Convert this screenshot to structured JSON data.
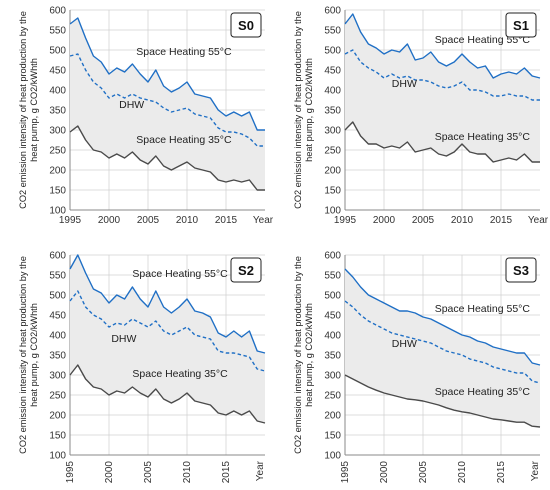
{
  "colors": {
    "space_55": "#1f6fc5",
    "dhw": "#1f6fc5",
    "space_35": "#4a4a4a",
    "band": "#ebebeb",
    "grid": "#d0d0d0"
  },
  "chart_data": [
    {
      "type": "line",
      "panel_label": "S0",
      "ylabel": "CO2 emission intensity of heat production by the heat pump, g CO2/kWhth",
      "ylim": [
        100,
        600
      ],
      "yticks": [
        100,
        150,
        200,
        250,
        300,
        350,
        400,
        450,
        500,
        550,
        600
      ],
      "xlim": [
        1995,
        2020
      ],
      "xticks": [
        1995,
        2000,
        2005,
        2010,
        2015
      ],
      "x_end_label": "Year",
      "annotations": [
        "Space Heating 55°C",
        "DHW",
        "Space Heating 35°C"
      ],
      "x": [
        1995,
        1996,
        1997,
        1998,
        1999,
        2000,
        2001,
        2002,
        2003,
        2004,
        2005,
        2006,
        2007,
        2008,
        2009,
        2010,
        2011,
        2012,
        2013,
        2014,
        2015,
        2016,
        2017,
        2018,
        2019,
        2020
      ],
      "series": [
        {
          "name": "Space Heating 55°C",
          "style": "solid",
          "values": [
            565,
            580,
            530,
            485,
            470,
            440,
            455,
            445,
            465,
            440,
            420,
            450,
            410,
            395,
            405,
            420,
            390,
            385,
            380,
            350,
            335,
            345,
            335,
            345,
            300,
            300
          ]
        },
        {
          "name": "DHW",
          "style": "dashed",
          "values": [
            485,
            490,
            450,
            420,
            405,
            380,
            390,
            380,
            390,
            380,
            375,
            370,
            355,
            345,
            350,
            355,
            340,
            335,
            330,
            305,
            295,
            295,
            290,
            280,
            260,
            260
          ]
        },
        {
          "name": "Space Heating 35°C",
          "style": "solid",
          "values": [
            295,
            310,
            275,
            250,
            245,
            230,
            240,
            230,
            245,
            225,
            215,
            235,
            210,
            200,
            210,
            220,
            205,
            200,
            195,
            175,
            170,
            175,
            170,
            175,
            150,
            150
          ]
        }
      ]
    },
    {
      "type": "line",
      "panel_label": "S1",
      "ylabel": "CO2 emission intensity of heat production by the heat pump, g CO2/kWhth",
      "ylim": [
        100,
        600
      ],
      "yticks": [
        100,
        150,
        200,
        250,
        300,
        350,
        400,
        450,
        500,
        550,
        600
      ],
      "xlim": [
        1995,
        2020
      ],
      "xticks": [
        1995,
        2000,
        2005,
        2010,
        2015
      ],
      "x_end_label": "Year",
      "annotations": [
        "Space Heating 55°C",
        "DHW",
        "Space Heating 35°C"
      ],
      "x": [
        1995,
        1996,
        1997,
        1998,
        1999,
        2000,
        2001,
        2002,
        2003,
        2004,
        2005,
        2006,
        2007,
        2008,
        2009,
        2010,
        2011,
        2012,
        2013,
        2014,
        2015,
        2016,
        2017,
        2018,
        2019,
        2020
      ],
      "series": [
        {
          "name": "Space Heating 55°C",
          "style": "solid",
          "values": [
            565,
            590,
            545,
            515,
            505,
            490,
            500,
            495,
            515,
            475,
            480,
            495,
            470,
            460,
            470,
            490,
            470,
            455,
            460,
            430,
            440,
            445,
            440,
            455,
            435,
            430
          ]
        },
        {
          "name": "DHW",
          "style": "dashed",
          "values": [
            490,
            500,
            470,
            455,
            445,
            430,
            440,
            430,
            435,
            425,
            425,
            420,
            410,
            405,
            410,
            420,
            400,
            400,
            395,
            385,
            385,
            390,
            385,
            385,
            375,
            375
          ]
        },
        {
          "name": "Space Heating 35°C",
          "style": "solid",
          "values": [
            300,
            320,
            285,
            265,
            265,
            255,
            260,
            255,
            270,
            245,
            250,
            255,
            240,
            235,
            245,
            265,
            245,
            240,
            240,
            220,
            225,
            230,
            225,
            240,
            220,
            220
          ]
        }
      ]
    },
    {
      "type": "line",
      "panel_label": "S2",
      "ylabel": "CO2 emission intensity of heat production by the heat pump, g CO2/kWhth",
      "ylim": [
        100,
        600
      ],
      "yticks": [
        100,
        150,
        200,
        250,
        300,
        350,
        400,
        450,
        500,
        550,
        600
      ],
      "xlim": [
        1995,
        2020
      ],
      "xticks": [
        1995,
        2000,
        2005,
        2010,
        2015
      ],
      "x_end_label": "Year",
      "annotations": [
        "Space Heating 55°C",
        "DHW",
        "Space Heating 35°C"
      ],
      "x": [
        1995,
        1996,
        1997,
        1998,
        1999,
        2000,
        2001,
        2002,
        2003,
        2004,
        2005,
        2006,
        2007,
        2008,
        2009,
        2010,
        2011,
        2012,
        2013,
        2014,
        2015,
        2016,
        2017,
        2018,
        2019,
        2020
      ],
      "series": [
        {
          "name": "Space Heating 55°C",
          "style": "solid",
          "values": [
            565,
            600,
            555,
            515,
            505,
            480,
            500,
            490,
            520,
            490,
            470,
            510,
            470,
            455,
            470,
            490,
            460,
            455,
            445,
            405,
            395,
            410,
            395,
            410,
            360,
            355
          ]
        },
        {
          "name": "DHW",
          "style": "dashed",
          "values": [
            485,
            510,
            470,
            450,
            440,
            420,
            430,
            425,
            440,
            430,
            420,
            435,
            410,
            400,
            410,
            420,
            400,
            395,
            390,
            360,
            355,
            355,
            350,
            345,
            315,
            310
          ]
        },
        {
          "name": "Space Heating 35°C",
          "style": "solid",
          "values": [
            300,
            325,
            290,
            270,
            265,
            250,
            260,
            255,
            270,
            255,
            245,
            265,
            240,
            230,
            240,
            255,
            235,
            230,
            225,
            205,
            200,
            210,
            200,
            210,
            185,
            180
          ]
        }
      ]
    },
    {
      "type": "line",
      "panel_label": "S3",
      "ylabel": "CO2 emission intensity of heat production by the heat pump, g CO2/kWhth",
      "ylim": [
        100,
        600
      ],
      "yticks": [
        100,
        150,
        200,
        250,
        300,
        350,
        400,
        450,
        500,
        550,
        600
      ],
      "xlim": [
        1995,
        2020
      ],
      "xticks": [
        1995,
        2000,
        2005,
        2010,
        2015
      ],
      "x_end_label": "Year",
      "annotations": [
        "Space Heating 55°C",
        "DHW",
        "Space Heating 35°C"
      ],
      "x": [
        1995,
        1996,
        1997,
        1998,
        1999,
        2000,
        2001,
        2002,
        2003,
        2004,
        2005,
        2006,
        2007,
        2008,
        2009,
        2010,
        2011,
        2012,
        2013,
        2014,
        2015,
        2016,
        2017,
        2018,
        2019,
        2020
      ],
      "series": [
        {
          "name": "Space Heating 55°C",
          "style": "solid",
          "values": [
            565,
            545,
            520,
            500,
            490,
            480,
            470,
            460,
            460,
            455,
            445,
            440,
            430,
            420,
            410,
            400,
            395,
            385,
            380,
            370,
            365,
            360,
            355,
            355,
            330,
            325
          ]
        },
        {
          "name": "DHW",
          "style": "dashed",
          "values": [
            485,
            470,
            450,
            435,
            425,
            415,
            405,
            400,
            395,
            390,
            385,
            380,
            370,
            360,
            355,
            350,
            340,
            335,
            330,
            320,
            315,
            310,
            305,
            305,
            285,
            280
          ]
        },
        {
          "name": "Space Heating 35°C",
          "style": "solid",
          "values": [
            300,
            290,
            280,
            270,
            262,
            255,
            250,
            245,
            240,
            238,
            235,
            230,
            225,
            218,
            212,
            208,
            205,
            200,
            195,
            190,
            188,
            185,
            182,
            182,
            172,
            170
          ]
        }
      ]
    }
  ]
}
